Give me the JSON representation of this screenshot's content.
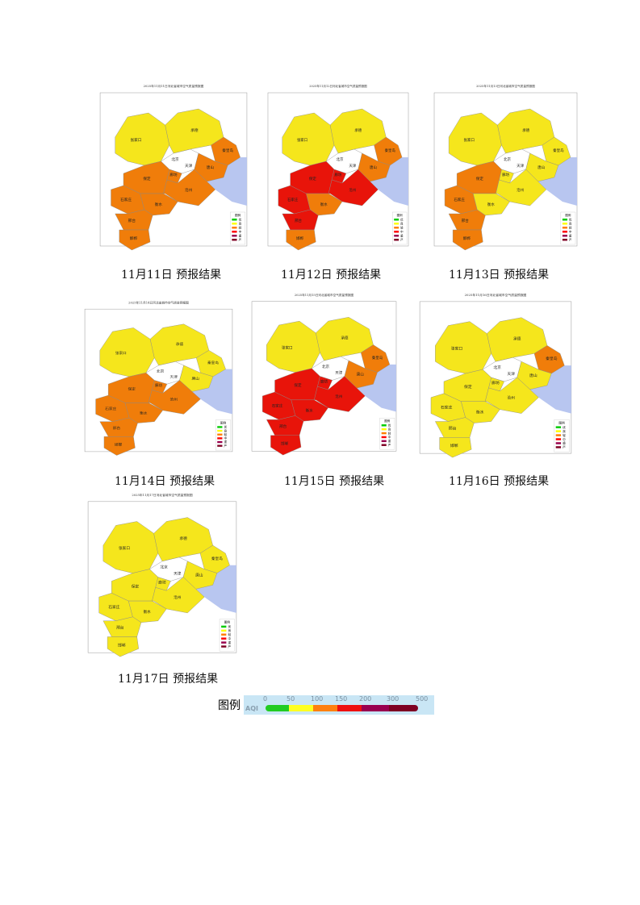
{
  "maps": [
    {
      "title": "2025年11月11日河北省城市空气质量预报图",
      "caption": "11月11日 预报结果",
      "colors": {
        "张家口": "yellow",
        "承德": "yellow",
        "秦皇岛": "orange",
        "唐山": "orange",
        "廊坊": "orange",
        "保定": "orange",
        "石家庄": "orange",
        "沧州": "orange",
        "衡水": "orange",
        "邢台": "orange",
        "邯郸": "orange"
      }
    },
    {
      "title": "2025年11月12日河北省城市空气质量预报图",
      "caption": "11月12日 预报结果",
      "colors": {
        "张家口": "yellow",
        "承德": "yellow",
        "秦皇岛": "orange",
        "唐山": "orange",
        "廊坊": "red",
        "保定": "red",
        "石家庄": "red",
        "沧州": "red",
        "衡水": "orange",
        "邢台": "red",
        "邯郸": "orange"
      }
    },
    {
      "title": "2025年11月13日河北省城市空气质量预报图",
      "caption": "11月13日 预报结果",
      "colors": {
        "张家口": "yellow",
        "承德": "yellow",
        "秦皇岛": "yellow",
        "唐山": "yellow",
        "廊坊": "yellow",
        "保定": "orange",
        "石家庄": "orange",
        "沧州": "yellow",
        "衡水": "yellow",
        "邢台": "orange",
        "邯郸": "orange"
      }
    },
    {
      "title": "2025年11月14日河北省城市空气质量预报图",
      "caption": "11月14日 预报结果",
      "colors": {
        "张家口": "yellow",
        "承德": "yellow",
        "秦皇岛": "yellow",
        "唐山": "yellow",
        "廊坊": "orange",
        "保定": "orange",
        "石家庄": "orange",
        "沧州": "orange",
        "衡水": "orange",
        "邢台": "orange",
        "邯郸": "orange"
      }
    },
    {
      "title": "2025年11月15日河北省城市空气质量预报图",
      "caption": "11月15日 预报结果",
      "colors": {
        "张家口": "yellow",
        "承德": "yellow",
        "秦皇岛": "orange",
        "唐山": "orange",
        "廊坊": "red",
        "保定": "red",
        "石家庄": "red",
        "沧州": "red",
        "衡水": "red",
        "邢台": "red",
        "邯郸": "red"
      }
    },
    {
      "title": "2025年11月16日河北省城市空气质量预报图",
      "caption": "11月16日 预报结果",
      "colors": {
        "张家口": "yellow",
        "承德": "yellow",
        "秦皇岛": "orange",
        "唐山": "yellow",
        "廊坊": "yellow",
        "保定": "yellow",
        "石家庄": "yellow",
        "沧州": "yellow",
        "衡水": "yellow",
        "邢台": "yellow",
        "邯郸": "yellow"
      }
    },
    {
      "title": "2025年11月17日河北省城市空气质量预报图",
      "caption": "11月17日 预报结果",
      "colors": {
        "张家口": "yellow",
        "承德": "yellow",
        "秦皇岛": "yellow",
        "唐山": "yellow",
        "廊坊": "yellow",
        "保定": "yellow",
        "石家庄": "yellow",
        "沧州": "yellow",
        "衡水": "yellow",
        "邢台": "yellow",
        "邯郸": "yellow"
      }
    }
  ],
  "other_labels": {
    "beijing": "北京",
    "tianjin": "天津"
  },
  "map_legend": {
    "title": "图例",
    "items": [
      {
        "label": "优",
        "color": "#00cc00"
      },
      {
        "label": "良",
        "color": "#ffff00"
      },
      {
        "label": "轻",
        "color": "#ff7e00"
      },
      {
        "label": "中",
        "color": "#ff0000"
      },
      {
        "label": "重",
        "color": "#99004c"
      },
      {
        "label": "严",
        "color": "#7e0023"
      }
    ]
  },
  "palette": {
    "yellow": "#f5e61c",
    "orange": "#f07d0a",
    "red": "#e8140a",
    "sea": "#b8c6f0"
  },
  "legend": {
    "label": "图例",
    "aqi": "AQI",
    "ticks": [
      "0",
      "50",
      "100",
      "150",
      "200",
      "300",
      "500"
    ],
    "colors": [
      "#22cc22",
      "#ffff22",
      "#ff8010",
      "#ee1010",
      "#990050",
      "#7e0023"
    ]
  }
}
